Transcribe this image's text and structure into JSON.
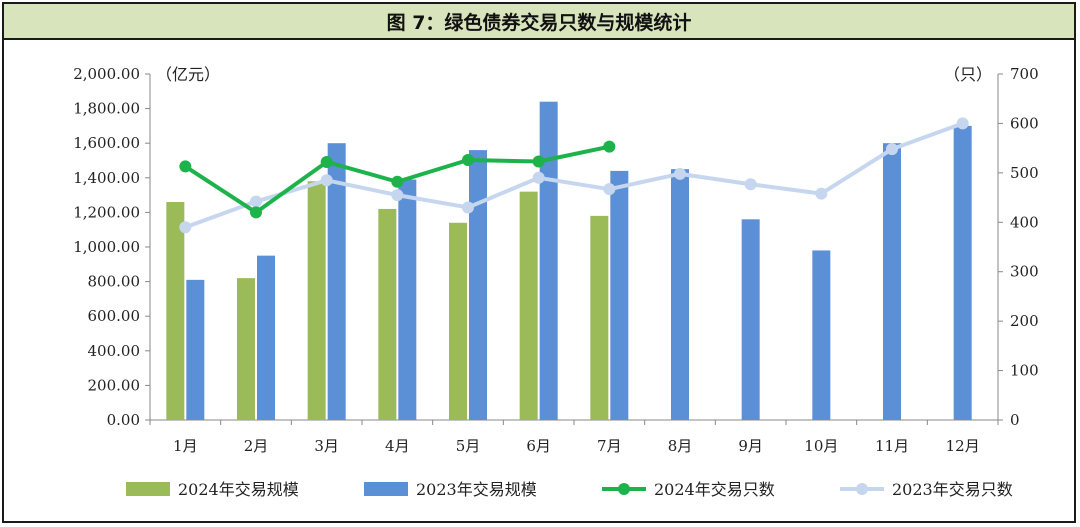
{
  "title": "图 7：绿色债券交易只数与规模统计",
  "chart_data": {
    "type": "bar",
    "categories": [
      "1月",
      "2月",
      "3月",
      "4月",
      "5月",
      "6月",
      "7月",
      "8月",
      "9月",
      "10月",
      "11月",
      "12月"
    ],
    "left_axis": {
      "unit": "（亿元）",
      "ylim": [
        0,
        2000
      ],
      "ticks": [
        "0.00",
        "200.00",
        "400.00",
        "600.00",
        "800.00",
        "1,000.00",
        "1,200.00",
        "1,400.00",
        "1,600.00",
        "1,800.00",
        "2,000.00"
      ]
    },
    "right_axis": {
      "unit": "（只）",
      "ylim": [
        0,
        700
      ],
      "ticks": [
        "0",
        "100",
        "200",
        "300",
        "400",
        "500",
        "600",
        "700"
      ]
    },
    "bar_series": [
      {
        "name": "2024年交易规模",
        "color": "#9bbb59",
        "values": [
          1260,
          820,
          1380,
          1220,
          1140,
          1320,
          1180,
          null,
          null,
          null,
          null,
          null
        ]
      },
      {
        "name": "2023年交易规模",
        "color": "#5b8fd6",
        "values": [
          810,
          950,
          1600,
          1390,
          1560,
          1840,
          1440,
          1450,
          1160,
          980,
          1600,
          1700
        ]
      }
    ],
    "line_series": [
      {
        "name": "2024年交易只数",
        "color": "#1db34a",
        "axis": "right",
        "values": [
          513,
          420,
          522,
          482,
          526,
          523,
          553,
          null,
          null,
          null,
          null,
          null
        ]
      },
      {
        "name": "2023年交易只数",
        "color": "#c6d6ef",
        "axis": "right",
        "values": [
          390,
          442,
          485,
          455,
          430,
          490,
          467,
          498,
          477,
          458,
          548,
          600
        ]
      }
    ],
    "grid": false,
    "legend_position": "bottom"
  }
}
